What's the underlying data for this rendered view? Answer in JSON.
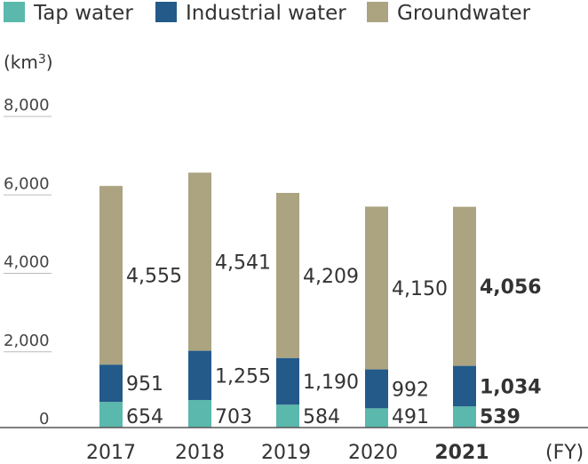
{
  "chart_data": {
    "type": "bar",
    "stacked": true,
    "unit": "(km3)",
    "unit_main": "(km",
    "unit_sup": "3",
    "unit_close": ")",
    "x_unit": "(FY)",
    "categories": [
      "2017",
      "2018",
      "2019",
      "2020",
      "2021"
    ],
    "highlight_category": "2021",
    "series": [
      {
        "name": "Tap water",
        "color": "#5bb8ac",
        "values": [
          654,
          703,
          584,
          491,
          539
        ],
        "labels": [
          "654",
          "703",
          "584",
          "491",
          "539"
        ]
      },
      {
        "name": "Industrial water",
        "color": "#235a8a",
        "values": [
          951,
          1255,
          1190,
          992,
          1034
        ],
        "labels": [
          "951",
          "1,255",
          "1,190",
          "992",
          "1,034"
        ]
      },
      {
        "name": "Groundwater",
        "color": "#aca381",
        "values": [
          4555,
          4541,
          4209,
          4150,
          4056
        ],
        "labels": [
          "4,555",
          "4,541",
          "4,209",
          "4,150",
          "4,056"
        ]
      }
    ],
    "ylim": [
      0,
      8000
    ],
    "yticks": [
      0,
      2000,
      4000,
      6000,
      8000
    ],
    "ytick_labels": [
      "0",
      "2,000",
      "4,000",
      "6,000",
      "8,000"
    ],
    "legend_position": "top-left",
    "grid": false
  }
}
